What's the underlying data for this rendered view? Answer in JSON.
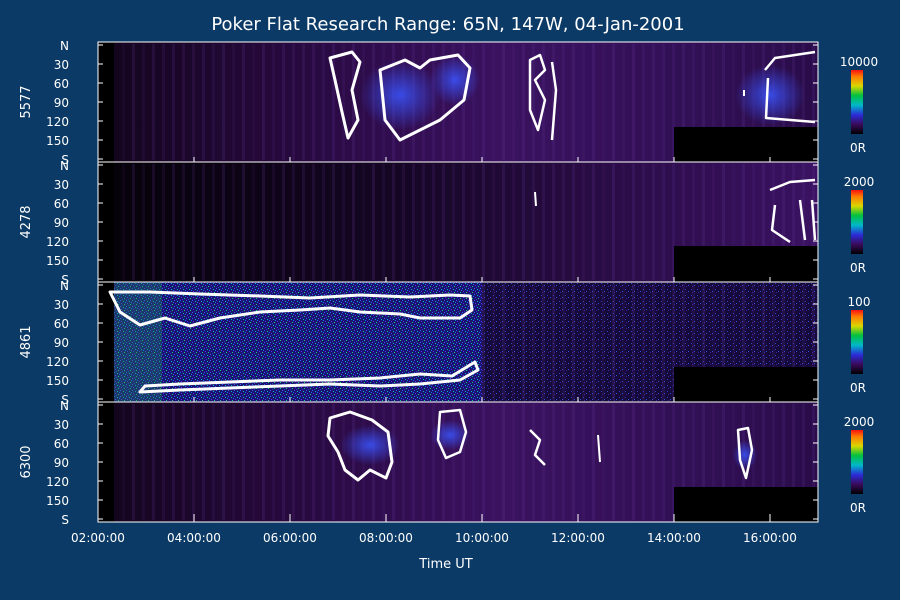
{
  "chart_data": {
    "type": "heatmap",
    "title": "Poker Flat Research Range: 65N, 147W, 04-Jan-2001",
    "xlabel": "Time UT",
    "x_ticks": [
      "02:00:00",
      "04:00:00",
      "06:00:00",
      "08:00:00",
      "10:00:00",
      "12:00:00",
      "14:00:00",
      "16:00:00"
    ],
    "x_range": [
      "02:00:00",
      "17:00:00"
    ],
    "y_ticks": [
      "N",
      "30",
      "60",
      "90",
      "120",
      "150",
      "S"
    ],
    "y_range": [
      "N",
      "S"
    ],
    "panels": [
      {
        "name": "5577",
        "colorbar_max": "10000",
        "colorbar_min": "0R"
      },
      {
        "name": "4278",
        "colorbar_max": "2000",
        "colorbar_min": "0R"
      },
      {
        "name": "4861",
        "colorbar_max": "100",
        "colorbar_min": "0R"
      },
      {
        "name": "6300",
        "colorbar_max": "2000",
        "colorbar_min": "0R"
      }
    ]
  }
}
